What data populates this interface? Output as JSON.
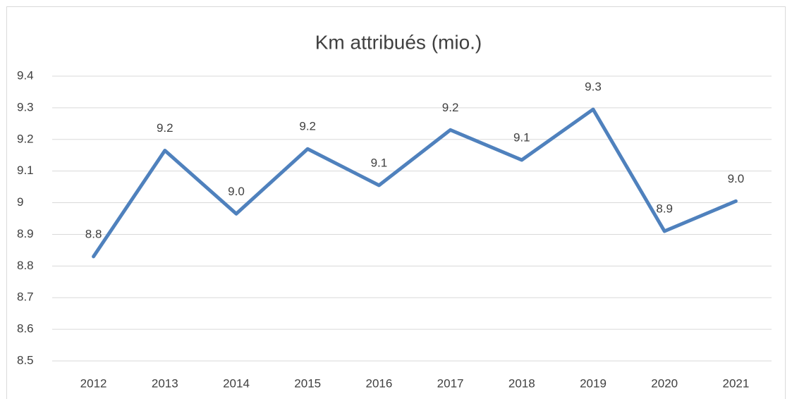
{
  "chart_data": {
    "type": "line",
    "title": "Km attribués (mio.)",
    "categories": [
      "2012",
      "2013",
      "2014",
      "2015",
      "2016",
      "2017",
      "2018",
      "2019",
      "2020",
      "2021"
    ],
    "series": [
      {
        "name": "Km attribués (mio.)",
        "color": "#4f81bd",
        "values": [
          8.83,
          9.165,
          8.965,
          9.17,
          9.055,
          9.23,
          9.135,
          9.295,
          8.91,
          9.005
        ],
        "value_labels": [
          "8.8",
          "9.2",
          "9.0",
          "9.2",
          "9.1",
          "9.2",
          "9.1",
          "9.3",
          "8.9",
          "9.0"
        ]
      }
    ],
    "ylim": [
      8.5,
      9.4
    ],
    "yticks": [
      8.5,
      8.6,
      8.7,
      8.8,
      8.9,
      9,
      9.1,
      9.2,
      9.3,
      9.4
    ],
    "grid": true
  }
}
